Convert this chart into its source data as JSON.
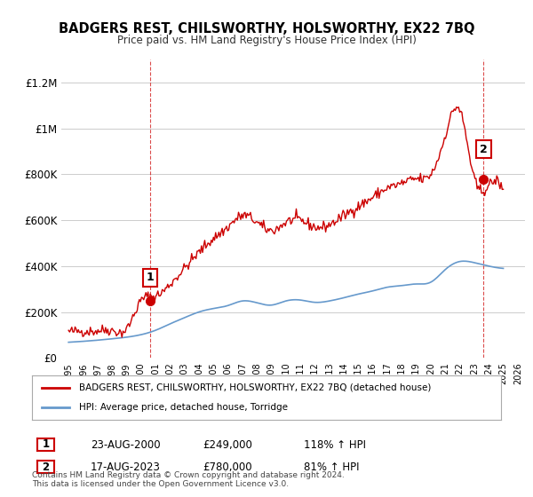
{
  "title": "BADGERS REST, CHILSWORTHY, HOLSWORTHY, EX22 7BQ",
  "subtitle": "Price paid vs. HM Land Registry's House Price Index (HPI)",
  "legend_line1": "BADGERS REST, CHILSWORTHY, HOLSWORTHY, EX22 7BQ (detached house)",
  "legend_line2": "HPI: Average price, detached house, Torridge",
  "annotation1_label": "1",
  "annotation1_date": "23-AUG-2000",
  "annotation1_price": "£249,000",
  "annotation1_hpi": "118% ↑ HPI",
  "annotation2_label": "2",
  "annotation2_date": "17-AUG-2023",
  "annotation2_price": "£780,000",
  "annotation2_hpi": "81% ↑ HPI",
  "footnote": "Contains HM Land Registry data © Crown copyright and database right 2024.\nThis data is licensed under the Open Government Licence v3.0.",
  "red_color": "#cc0000",
  "blue_color": "#6699cc",
  "background_color": "#ffffff",
  "grid_color": "#cccccc",
  "ylim": [
    0,
    1300000
  ],
  "yticks": [
    0,
    200000,
    400000,
    600000,
    800000,
    1000000,
    1200000
  ],
  "ytick_labels": [
    "£0",
    "£200K",
    "£400K",
    "£600K",
    "£800K",
    "£1M",
    "£1.2M"
  ],
  "sale1_x": 2000.646,
  "sale1_y": 249000,
  "sale2_x": 2023.646,
  "sale2_y": 780000,
  "hpi_years": [
    1995,
    1996,
    1997,
    1998,
    1999,
    2000,
    2001,
    2002,
    2003,
    2004,
    2005,
    2006,
    2007,
    2008,
    2009,
    2010,
    2011,
    2012,
    2013,
    2014,
    2015,
    2016,
    2017,
    2018,
    2019,
    2020,
    2021,
    2022,
    2023,
    2024,
    2025
  ],
  "hpi_values": [
    68000,
    72000,
    77000,
    83000,
    90000,
    101000,
    120000,
    148000,
    175000,
    200000,
    215000,
    228000,
    248000,
    240000,
    230000,
    248000,
    252000,
    242000,
    248000,
    262000,
    278000,
    292000,
    308000,
    315000,
    322000,
    330000,
    385000,
    420000,
    415000,
    400000,
    390000
  ],
  "red_years": [
    1995,
    1996,
    1997,
    1998,
    1999,
    2000,
    2001,
    2002,
    2003,
    2004,
    2005,
    2006,
    2007,
    2008,
    2009,
    2010,
    2011,
    2012,
    2013,
    2014,
    2015,
    2016,
    2017,
    2018,
    2019,
    2020,
    2021,
    2022,
    2023,
    2024,
    2025
  ],
  "red_values": [
    114000,
    116000,
    118000,
    120000,
    125000,
    249000,
    270000,
    320000,
    390000,
    460000,
    520000,
    570000,
    620000,
    590000,
    555000,
    590000,
    600000,
    570000,
    580000,
    620000,
    660000,
    700000,
    740000,
    760000,
    780000,
    800000,
    970000,
    1080000,
    780000,
    750000,
    720000
  ],
  "xlim_left": 1994.5,
  "xlim_right": 2026.5
}
